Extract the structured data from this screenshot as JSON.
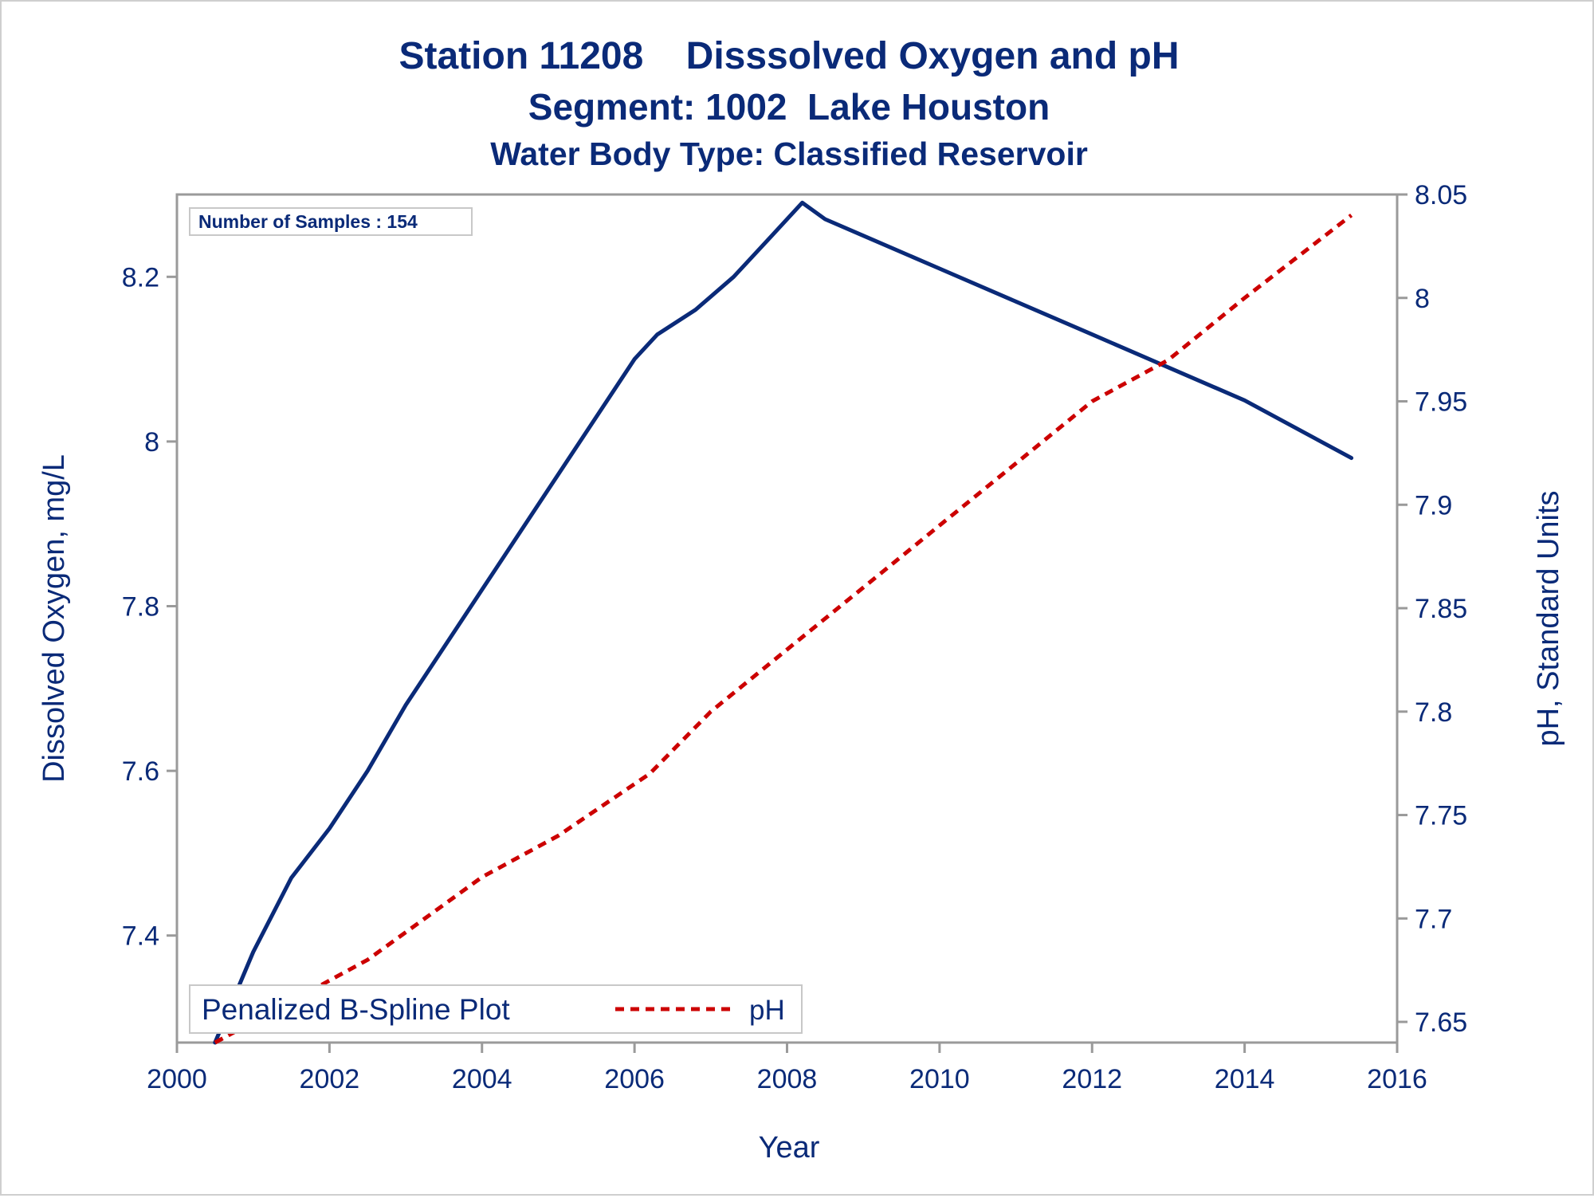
{
  "chart_data": {
    "type": "line",
    "title": "Station 11208    Disssolved Oxygen and pH",
    "subtitle": "Segment: 1002  Lake Houston",
    "subtitle2": "Water Body Type: Classified Reservoir",
    "inset_label": "Number of Samples : 154",
    "xlabel": "Year",
    "ylabel": "Dissolved Oxygen, mg/L",
    "y2label": "pH, Standard Units",
    "xlim": [
      2000,
      2016
    ],
    "ylim": [
      7.27,
      8.3
    ],
    "y2lim": [
      7.64,
      8.05
    ],
    "x_ticks": [
      "2000",
      "2002",
      "2004",
      "2006",
      "2008",
      "2010",
      "2012",
      "2014",
      "2016"
    ],
    "y_ticks": [
      "7.4",
      "7.6",
      "7.8",
      "8",
      "8.2"
    ],
    "y2_ticks": [
      "7.65",
      "7.7",
      "7.75",
      "7.8",
      "7.85",
      "7.9",
      "7.95",
      "8",
      "8.05"
    ],
    "legend": {
      "title": "Penalized B-Spline Plot",
      "entries": [
        {
          "label": "pH",
          "color": "#cc0000",
          "style": "dashed"
        }
      ],
      "placement": "bottom-left"
    },
    "grid": false,
    "series": [
      {
        "name": "Dissolved Oxygen",
        "axis": "left",
        "color": "#0a2a78",
        "style": "solid",
        "points": [
          [
            2000.5,
            7.27
          ],
          [
            2001.0,
            7.38
          ],
          [
            2001.5,
            7.47
          ],
          [
            2002.0,
            7.53
          ],
          [
            2002.5,
            7.6
          ],
          [
            2003.0,
            7.68
          ],
          [
            2003.5,
            7.75
          ],
          [
            2004.0,
            7.82
          ],
          [
            2004.5,
            7.89
          ],
          [
            2005.0,
            7.96
          ],
          [
            2005.5,
            8.03
          ],
          [
            2006.0,
            8.1
          ],
          [
            2006.3,
            8.13
          ],
          [
            2006.8,
            8.16
          ],
          [
            2007.3,
            8.2
          ],
          [
            2007.8,
            8.25
          ],
          [
            2008.2,
            8.29
          ],
          [
            2008.5,
            8.27
          ],
          [
            2009.0,
            8.25
          ],
          [
            2010.0,
            8.21
          ],
          [
            2011.0,
            8.17
          ],
          [
            2012.0,
            8.13
          ],
          [
            2013.0,
            8.09
          ],
          [
            2014.0,
            8.05
          ],
          [
            2015.4,
            7.98
          ]
        ]
      },
      {
        "name": "pH",
        "axis": "right",
        "color": "#cc0000",
        "style": "dashed",
        "points": [
          [
            2000.5,
            7.64
          ],
          [
            2001.5,
            7.66
          ],
          [
            2002.5,
            7.68
          ],
          [
            2004.0,
            7.72
          ],
          [
            2005.0,
            7.74
          ],
          [
            2006.2,
            7.77
          ],
          [
            2007.0,
            7.8
          ],
          [
            2008.0,
            7.83
          ],
          [
            2009.0,
            7.86
          ],
          [
            2010.0,
            7.89
          ],
          [
            2011.0,
            7.92
          ],
          [
            2012.0,
            7.95
          ],
          [
            2013.0,
            7.97
          ],
          [
            2014.0,
            8.0
          ],
          [
            2015.4,
            8.04
          ]
        ]
      }
    ]
  }
}
